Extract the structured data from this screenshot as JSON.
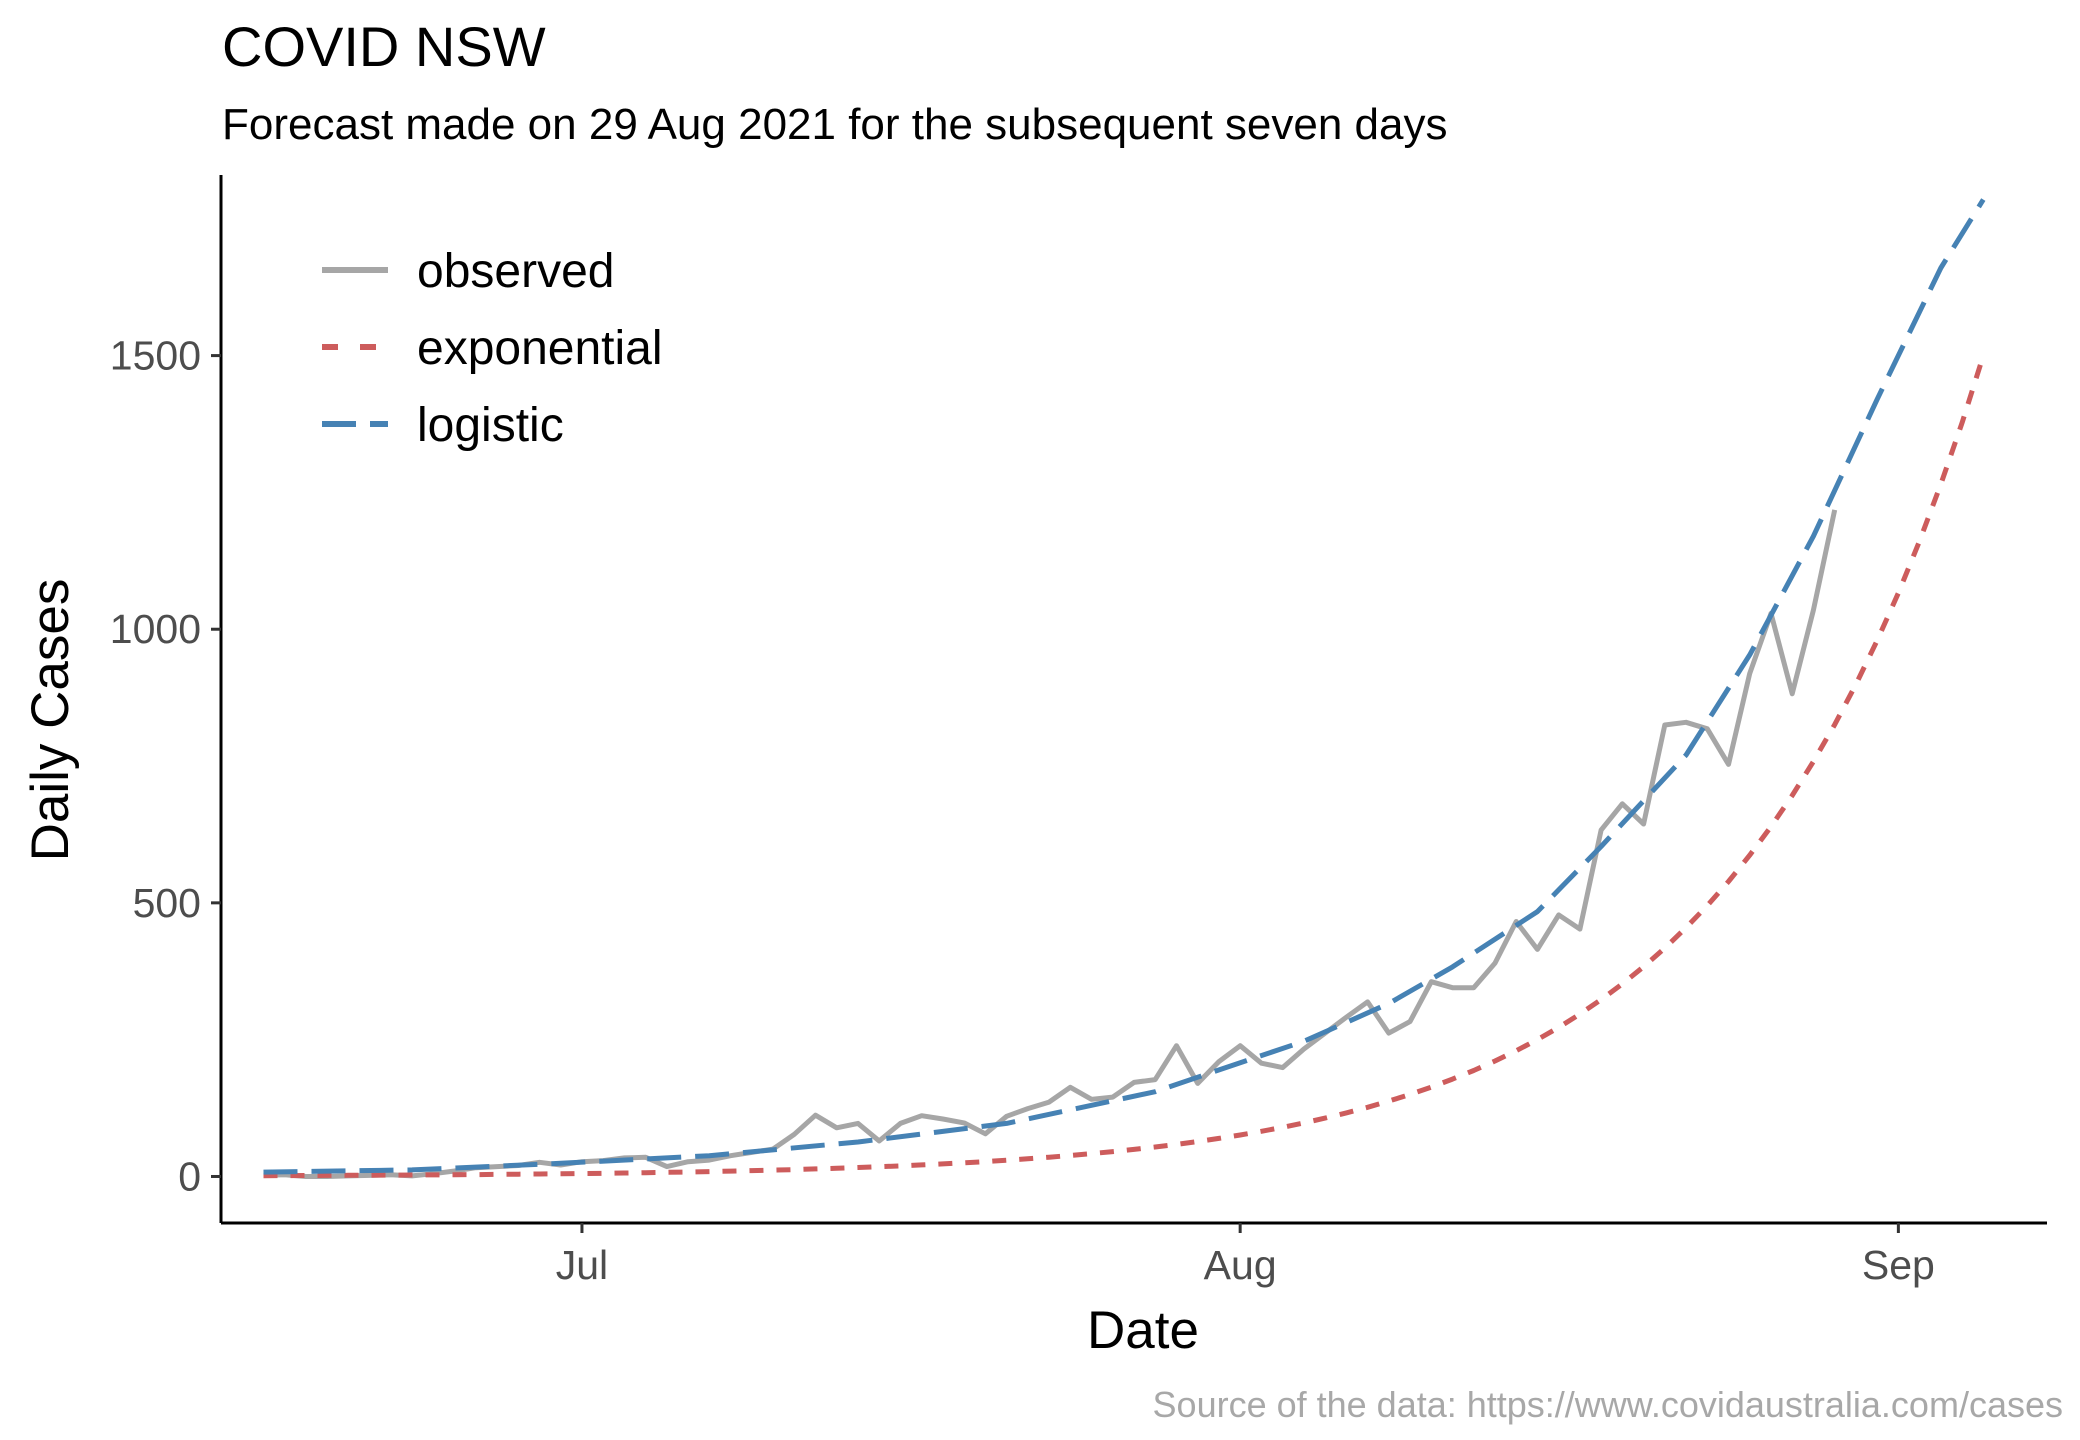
{
  "chart_data": {
    "type": "line",
    "title": "COVID NSW",
    "subtitle": "Forecast made on 29 Aug 2021 for the subsequent seven days",
    "caption": "Source of the data: https://www.covidaustralia.com/cases",
    "xlabel": "Date",
    "ylabel": "Daily Cases",
    "x_ticks": [
      {
        "date": "2021-07-01",
        "label": "Jul"
      },
      {
        "date": "2021-08-01",
        "label": "Aug"
      },
      {
        "date": "2021-09-01",
        "label": "Sep"
      }
    ],
    "y_ticks": [
      0,
      500,
      1000,
      1500
    ],
    "xlim": [
      "2021-06-14",
      "2021-09-08"
    ],
    "ylim": [
      -85,
      1830
    ],
    "grid": false,
    "legend_position": "top-left",
    "series": [
      {
        "name": "observed",
        "color": "#a6a6a6",
        "style": "solid",
        "points": [
          [
            "2021-06-16",
            2
          ],
          [
            "2021-06-17",
            3
          ],
          [
            "2021-06-18",
            0
          ],
          [
            "2021-06-19",
            0
          ],
          [
            "2021-06-20",
            1
          ],
          [
            "2021-06-21",
            2
          ],
          [
            "2021-06-22",
            3
          ],
          [
            "2021-06-23",
            1
          ],
          [
            "2021-06-24",
            5
          ],
          [
            "2021-06-25",
            10
          ],
          [
            "2021-06-26",
            16
          ],
          [
            "2021-06-27",
            18
          ],
          [
            "2021-06-28",
            20
          ],
          [
            "2021-06-29",
            26
          ],
          [
            "2021-06-30",
            21
          ],
          [
            "2021-07-01",
            27
          ],
          [
            "2021-07-02",
            29
          ],
          [
            "2021-07-03",
            34
          ],
          [
            "2021-07-04",
            35
          ],
          [
            "2021-07-05",
            18
          ],
          [
            "2021-07-06",
            27
          ],
          [
            "2021-07-07",
            30
          ],
          [
            "2021-07-08",
            38
          ],
          [
            "2021-07-09",
            44
          ],
          [
            "2021-07-10",
            50
          ],
          [
            "2021-07-11",
            77
          ],
          [
            "2021-07-12",
            112
          ],
          [
            "2021-07-13",
            89
          ],
          [
            "2021-07-14",
            97
          ],
          [
            "2021-07-15",
            65
          ],
          [
            "2021-07-16",
            97
          ],
          [
            "2021-07-17",
            111
          ],
          [
            "2021-07-18",
            105
          ],
          [
            "2021-07-19",
            98
          ],
          [
            "2021-07-20",
            78
          ],
          [
            "2021-07-21",
            110
          ],
          [
            "2021-07-22",
            124
          ],
          [
            "2021-07-23",
            136
          ],
          [
            "2021-07-24",
            163
          ],
          [
            "2021-07-25",
            141
          ],
          [
            "2021-07-26",
            145
          ],
          [
            "2021-07-27",
            172
          ],
          [
            "2021-07-28",
            177
          ],
          [
            "2021-07-29",
            239
          ],
          [
            "2021-07-30",
            170
          ],
          [
            "2021-07-31",
            210
          ],
          [
            "2021-08-01",
            239
          ],
          [
            "2021-08-02",
            207
          ],
          [
            "2021-08-03",
            199
          ],
          [
            "2021-08-04",
            233
          ],
          [
            "2021-08-05",
            262
          ],
          [
            "2021-08-06",
            291
          ],
          [
            "2021-08-07",
            319
          ],
          [
            "2021-08-08",
            262
          ],
          [
            "2021-08-09",
            283
          ],
          [
            "2021-08-10",
            356
          ],
          [
            "2021-08-11",
            345
          ],
          [
            "2021-08-12",
            345
          ],
          [
            "2021-08-13",
            390
          ],
          [
            "2021-08-14",
            466
          ],
          [
            "2021-08-15",
            415
          ],
          [
            "2021-08-16",
            478
          ],
          [
            "2021-08-17",
            452
          ],
          [
            "2021-08-18",
            633
          ],
          [
            "2021-08-19",
            681
          ],
          [
            "2021-08-20",
            644
          ],
          [
            "2021-08-21",
            825
          ],
          [
            "2021-08-22",
            830
          ],
          [
            "2021-08-23",
            818
          ],
          [
            "2021-08-24",
            753
          ],
          [
            "2021-08-25",
            919
          ],
          [
            "2021-08-26",
            1029
          ],
          [
            "2021-08-27",
            882
          ],
          [
            "2021-08-28",
            1035
          ],
          [
            "2021-08-29",
            1218
          ]
        ]
      },
      {
        "name": "exponential",
        "color": "#cd5c5c",
        "style": "dashed",
        "fit": {
          "model": "exponential",
          "y_at_2021-06-16": 1.5,
          "y_at_2021-09-05": 1500,
          "x_start": "2021-06-16",
          "x_end": "2021-09-05"
        }
      },
      {
        "name": "logistic",
        "color": "#4682b4",
        "style": "longdash",
        "fit": {
          "model": "logistic",
          "x_start": "2021-06-16",
          "x_end": "2021-09-05"
        },
        "points": [
          [
            "2021-06-16",
            8
          ],
          [
            "2021-06-23",
            12
          ],
          [
            "2021-06-30",
            24
          ],
          [
            "2021-07-07",
            38
          ],
          [
            "2021-07-14",
            63
          ],
          [
            "2021-07-21",
            97
          ],
          [
            "2021-07-28",
            155
          ],
          [
            "2021-08-01",
            208
          ],
          [
            "2021-08-04",
            247
          ],
          [
            "2021-08-08",
            316
          ],
          [
            "2021-08-11",
            383
          ],
          [
            "2021-08-15",
            484
          ],
          [
            "2021-08-18",
            603
          ],
          [
            "2021-08-22",
            770
          ],
          [
            "2021-08-25",
            953
          ],
          [
            "2021-08-28",
            1170
          ],
          [
            "2021-08-31",
            1420
          ],
          [
            "2021-09-03",
            1660
          ],
          [
            "2021-09-05",
            1785
          ]
        ]
      }
    ]
  }
}
